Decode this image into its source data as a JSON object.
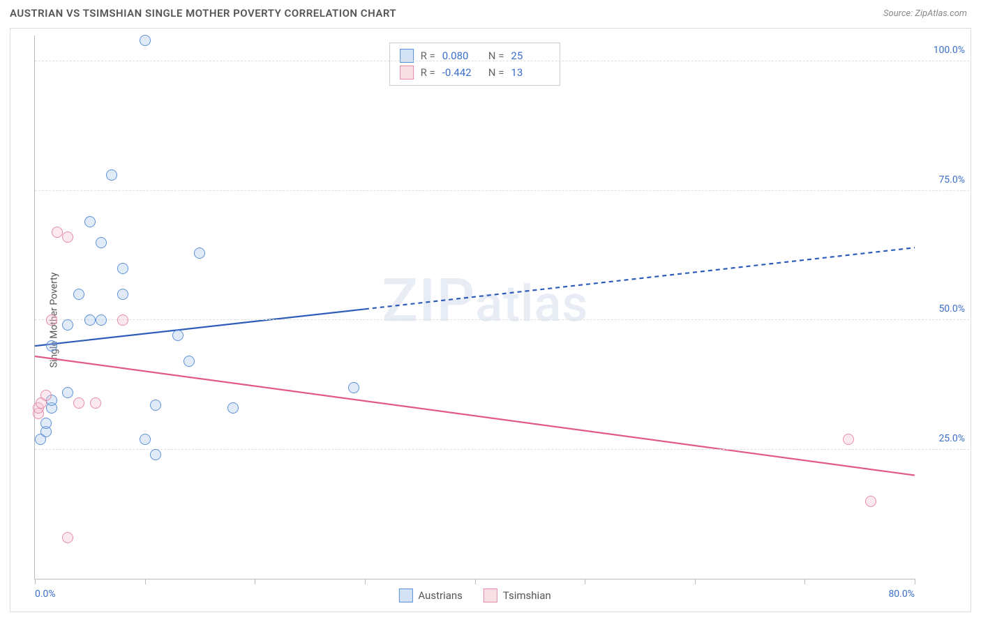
{
  "title": "AUSTRIAN VS TSIMSHIAN SINGLE MOTHER POVERTY CORRELATION CHART",
  "source": "Source: ZipAtlas.com",
  "ylabel": "Single Mother Poverty",
  "watermark": "ZIPatlas",
  "chart": {
    "type": "scatter",
    "xlim": [
      0,
      80
    ],
    "ylim": [
      0,
      105
    ],
    "xticks": [
      0,
      10,
      20,
      30,
      40,
      50,
      60,
      70,
      80
    ],
    "xtick_labels": {
      "0": "0.0%",
      "80": "80.0%"
    },
    "yticks": [
      25,
      50,
      75,
      100
    ],
    "ytick_labels": [
      "25.0%",
      "50.0%",
      "75.0%",
      "100.0%"
    ],
    "grid_color": "#dddddd",
    "axis_color": "#bbbbbb",
    "tick_label_color": "#3b6fc9",
    "marker_radius": 8,
    "marker_stroke_width": 1.5,
    "marker_fill_opacity": 0.35
  },
  "series": [
    {
      "name": "Austrians",
      "color_stroke": "#5b8fd6",
      "color_fill": "#a8c5ea",
      "points": [
        [
          0.5,
          27
        ],
        [
          1,
          28.5
        ],
        [
          1,
          30
        ],
        [
          1.5,
          33
        ],
        [
          1.5,
          34.5
        ],
        [
          3,
          36
        ],
        [
          1.5,
          45
        ],
        [
          3,
          49
        ],
        [
          4,
          55
        ],
        [
          5,
          50
        ],
        [
          6,
          50
        ],
        [
          6,
          65
        ],
        [
          8,
          55
        ],
        [
          8,
          60
        ],
        [
          5,
          69
        ],
        [
          7,
          78
        ],
        [
          10,
          104
        ],
        [
          13,
          47
        ],
        [
          15,
          63
        ],
        [
          11,
          24
        ],
        [
          11,
          33.5
        ],
        [
          10,
          27
        ],
        [
          18,
          33
        ],
        [
          14,
          42
        ],
        [
          29,
          37
        ]
      ],
      "trend": {
        "y_at_xmin": 45,
        "y_at_xmax": 64,
        "solid_until_x": 30,
        "color": "#2d5db8",
        "width": 2.2
      },
      "stats": {
        "R": "0.080",
        "N": "25"
      }
    },
    {
      "name": "Tsimshian",
      "color_stroke": "#e68aa5",
      "color_fill": "#f4c1d0",
      "points": [
        [
          0.3,
          32
        ],
        [
          0.3,
          33
        ],
        [
          0.6,
          34
        ],
        [
          1,
          35.5
        ],
        [
          2,
          67
        ],
        [
          3,
          66
        ],
        [
          1.5,
          50
        ],
        [
          4,
          34
        ],
        [
          5.5,
          34
        ],
        [
          8,
          50
        ],
        [
          3,
          8
        ],
        [
          74,
          27
        ],
        [
          76,
          15
        ]
      ],
      "trend": {
        "y_at_xmin": 43,
        "y_at_xmax": 20,
        "solid_until_x": 80,
        "color": "#e05a84",
        "width": 2.2
      },
      "stats": {
        "R": "-0.442",
        "N": "13"
      }
    }
  ],
  "legend_labels": {
    "R": "R =",
    "N": "N ="
  }
}
